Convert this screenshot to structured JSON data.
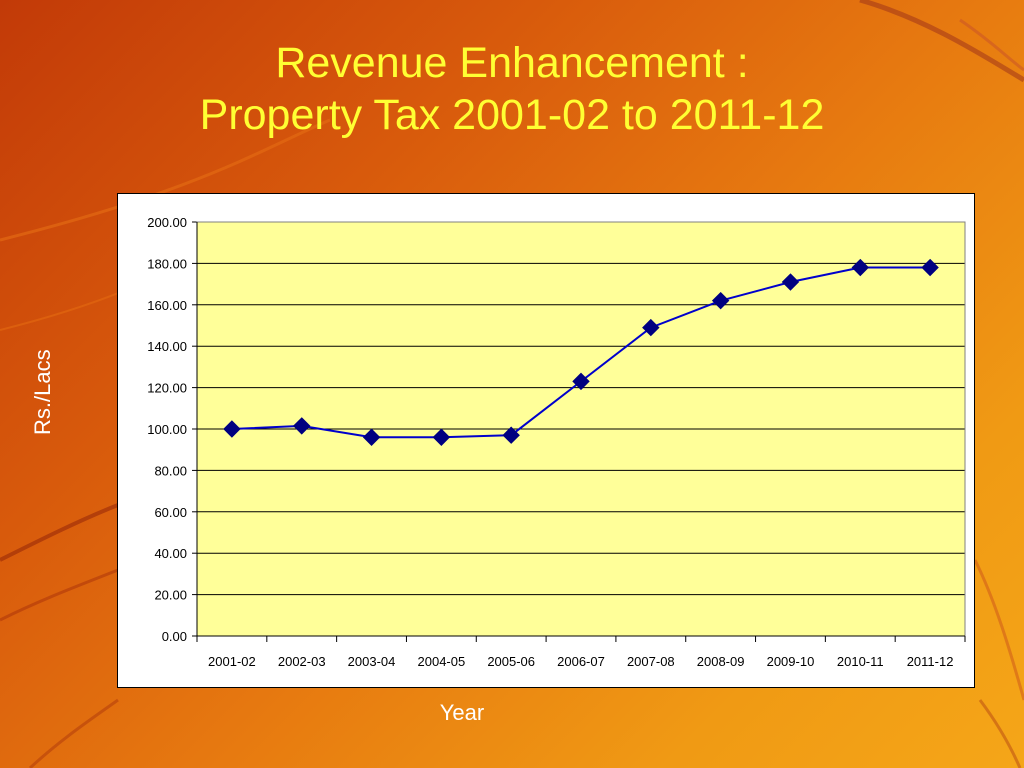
{
  "slide": {
    "title_line1": "Revenue Enhancement :",
    "title_line2": "Property Tax 2001-02 to 2011-12"
  },
  "colors": {
    "title": "#ffff33",
    "plot_background": "#ffff99",
    "series_line": "#0000cc",
    "marker": "#000080",
    "axis_label": "#ffffff"
  },
  "chart_data": {
    "type": "line",
    "title": "",
    "xlabel": "Year",
    "ylabel": "Rs./Lacs",
    "categories": [
      "2001-02",
      "2002-03",
      "2003-04",
      "2004-05",
      "2005-06",
      "2006-07",
      "2007-08",
      "2008-09",
      "2009-10",
      "2010-11",
      "2011-12"
    ],
    "series": [
      {
        "values": [
          100,
          101.5,
          96,
          96,
          97,
          123,
          149,
          162,
          171,
          178,
          178
        ]
      }
    ],
    "ylim": [
      0,
      200
    ],
    "yticks": [
      "0.00",
      "20.00",
      "40.00",
      "60.00",
      "80.00",
      "100.00",
      "120.00",
      "140.00",
      "160.00",
      "180.00",
      "200.00"
    ],
    "grid": "horizontal",
    "marker": "diamond",
    "legend": "none"
  }
}
